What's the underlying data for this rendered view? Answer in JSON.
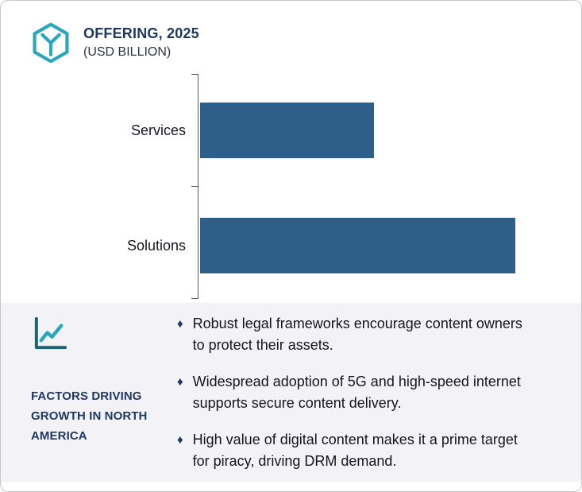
{
  "header": {
    "title": "OFFERING, 2025",
    "subtitle": "(USD BILLION)"
  },
  "chart_data": {
    "type": "bar",
    "orientation": "horizontal",
    "title": "OFFERING, 2025",
    "unit_label": "(USD BILLION)",
    "categories": [
      "Services",
      "Solutions"
    ],
    "values": [
      5.5,
      10
    ],
    "xlim": [
      0,
      11.6
    ],
    "grid": false,
    "legend": false,
    "data_labels": false
  },
  "factors": {
    "heading": "FACTORS DRIVING GROWTH IN NORTH AMERICA",
    "bullets": [
      "Robust legal frameworks encourage content owners to protect their assets.",
      "Widespread adoption of 5G and high-speed internet supports secure content delivery.",
      "High value of digital content makes it a prime target for piracy, driving DRM demand."
    ],
    "bullet_marker": "♦"
  },
  "colors": {
    "bar": "#2d5f8a",
    "accent_teal": "#2ba7bd",
    "navy": "#1f3864",
    "panel_bg": "#f2f2f7",
    "axis": "#55595f",
    "icon_axis": "#1f6073"
  }
}
